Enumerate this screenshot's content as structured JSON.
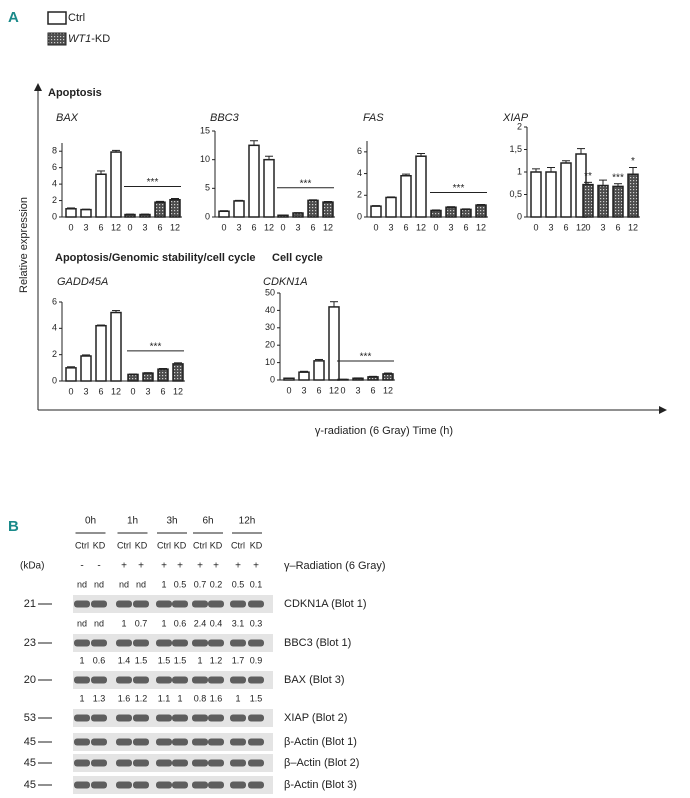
{
  "panel_a": {
    "label": "A",
    "legend": [
      "Ctrl",
      [
        "WT1",
        "-KD"
      ]
    ],
    "y_label": "Relative expression",
    "x_label": "γ-radiation (6 Gray) Time (h)",
    "sections": [
      "Apoptosis",
      "Apoptosis/Genomic stability/cell cycle",
      "Cell cycle"
    ]
  },
  "chart_data": [
    {
      "type": "bar",
      "title": "BAX",
      "categories": [
        "0",
        "3",
        "6",
        "12",
        "0",
        "3",
        "6",
        "12"
      ],
      "series": [
        {
          "color": "#ffffff",
          "values": [
            1.0,
            0.9,
            5.2,
            7.9,
            null,
            null,
            null,
            null
          ],
          "errors": [
            0.1,
            0.05,
            0.4,
            0.2,
            null,
            null,
            null,
            null
          ]
        },
        {
          "color": "#4d4d4d",
          "values": [
            null,
            null,
            null,
            null,
            0.3,
            0.3,
            1.8,
            2.1
          ],
          "errors": [
            null,
            null,
            null,
            null,
            0.05,
            0.05,
            0.1,
            0.15
          ]
        }
      ],
      "ylim": [
        0,
        9
      ],
      "yticks": [
        0,
        2,
        4,
        6,
        8
      ],
      "annotation": "***"
    },
    {
      "type": "bar",
      "title": "BBC3",
      "categories": [
        "0",
        "3",
        "6",
        "12",
        "0",
        "3",
        "6",
        "12"
      ],
      "series": [
        {
          "color": "#ffffff",
          "values": [
            1.0,
            2.8,
            12.5,
            10.0,
            null,
            null,
            null,
            null
          ],
          "errors": [
            0.1,
            0.1,
            0.8,
            0.6,
            null,
            null,
            null,
            null
          ]
        },
        {
          "color": "#4d4d4d",
          "values": [
            null,
            null,
            null,
            null,
            0.3,
            0.7,
            2.9,
            2.6
          ],
          "errors": [
            null,
            null,
            null,
            null,
            0.05,
            0.05,
            0.1,
            0.1
          ]
        }
      ],
      "ylim": [
        0,
        15
      ],
      "yticks": [
        0,
        5,
        10,
        15
      ],
      "annotation": "***"
    },
    {
      "type": "bar",
      "title": "FAS",
      "categories": [
        "0",
        "3",
        "6",
        "12",
        "0",
        "3",
        "6",
        "12"
      ],
      "series": [
        {
          "color": "#ffffff",
          "values": [
            1.0,
            1.8,
            3.8,
            5.6,
            null,
            null,
            null,
            null
          ],
          "errors": [
            0.05,
            0.05,
            0.15,
            0.25,
            null,
            null,
            null,
            null
          ]
        },
        {
          "color": "#4d4d4d",
          "values": [
            null,
            null,
            null,
            null,
            0.6,
            0.9,
            0.7,
            1.1
          ],
          "errors": [
            null,
            null,
            null,
            null,
            0.05,
            0.05,
            0.05,
            0.05
          ]
        }
      ],
      "ylim": [
        0,
        7
      ],
      "yticks": [
        0,
        2,
        4,
        6
      ],
      "annotation": "***"
    },
    {
      "type": "bar",
      "title": "XIAP",
      "categories": [
        "0",
        "3",
        "6",
        "12",
        "0",
        "3",
        "6",
        "12"
      ],
      "series": [
        {
          "color": "#ffffff",
          "values": [
            1.0,
            1.0,
            1.2,
            1.4,
            null,
            null,
            null,
            null
          ],
          "errors": [
            0.07,
            0.1,
            0.05,
            0.12,
            null,
            null,
            null,
            null
          ]
        },
        {
          "color": "#4d4d4d",
          "values": [
            null,
            null,
            null,
            null,
            0.72,
            0.7,
            0.68,
            0.95
          ],
          "errors": [
            null,
            null,
            null,
            null,
            0.05,
            0.12,
            0.06,
            0.15
          ],
          "stars": [
            null,
            null,
            null,
            null,
            "**",
            null,
            "***",
            "*"
          ]
        }
      ],
      "ylim": [
        0,
        2
      ],
      "yticks": [
        0,
        {
          "value": 0.5,
          "label": "0,5"
        },
        1,
        {
          "value": 1.5,
          "label": "1,5"
        },
        2
      ]
    },
    {
      "type": "bar",
      "title": "GADD45A",
      "categories": [
        "0",
        "3",
        "6",
        "12",
        "0",
        "3",
        "6",
        "12"
      ],
      "series": [
        {
          "color": "#ffffff",
          "values": [
            1.0,
            1.9,
            4.2,
            5.2,
            null,
            null,
            null,
            null
          ],
          "errors": [
            0.08,
            0.08,
            0.05,
            0.15,
            null,
            null,
            null,
            null
          ]
        },
        {
          "color": "#4d4d4d",
          "values": [
            null,
            null,
            null,
            null,
            0.5,
            0.6,
            0.9,
            1.3
          ],
          "errors": [
            null,
            null,
            null,
            null,
            0.03,
            0.03,
            0.05,
            0.08
          ]
        }
      ],
      "ylim": [
        0,
        6
      ],
      "yticks": [
        0,
        2,
        4,
        6
      ],
      "annotation": "***"
    },
    {
      "type": "bar",
      "title": "CDKN1A",
      "categories": [
        "0",
        "3",
        "6",
        "12",
        "0",
        "3",
        "6",
        "12"
      ],
      "series": [
        {
          "color": "#ffffff",
          "values": [
            1.0,
            4.5,
            11,
            42,
            null,
            null,
            null,
            null
          ],
          "errors": [
            0.1,
            0.5,
            0.8,
            3,
            null,
            null,
            null,
            null
          ]
        },
        {
          "color": "#4d4d4d",
          "values": [
            null,
            null,
            null,
            null,
            0.3,
            1.0,
            1.8,
            3.5
          ],
          "errors": [
            null,
            null,
            null,
            null,
            0.1,
            0.2,
            0.3,
            0.5
          ]
        }
      ],
      "ylim": [
        0,
        50
      ],
      "yticks": [
        0,
        10,
        20,
        30,
        40,
        50
      ],
      "annotation": "***"
    }
  ],
  "panel_b": {
    "label": "B",
    "times": [
      "0h",
      "1h",
      "3h",
      "6h",
      "12h"
    ],
    "lanes": [
      "Ctrl",
      "KD",
      "Ctrl",
      "KD",
      "Ctrl",
      "KD",
      "Ctrl",
      "KD",
      "Ctrl",
      "KD"
    ],
    "kda_label": "(kDa)",
    "radiation": [
      "-",
      "-",
      "+",
      "+",
      "+",
      "+",
      "+",
      "+",
      "+",
      "+"
    ],
    "radiation_label": "γ–Radiation (6 Gray)",
    "rows": [
      {
        "kda": "21",
        "label": "CDKN1A (Blot 1)",
        "quant": [
          "nd",
          "nd",
          "nd",
          "nd",
          "1",
          "0.5",
          "0.7",
          "0.2",
          "0.5",
          "0.1"
        ]
      },
      {
        "kda": "23",
        "label": "BBC3 (Blot 1)",
        "quant": [
          "nd",
          "nd",
          "1",
          "0.7",
          "1",
          "0.6",
          "2.4",
          "0.4",
          "3.1",
          "0.3"
        ]
      },
      {
        "kda": "20",
        "label": "BAX (Blot 3)",
        "quant": [
          "1",
          "0.6",
          "1.4",
          "1.5",
          "1.5",
          "1.5",
          "1",
          "1.2",
          "1.7",
          "0.9"
        ]
      },
      {
        "kda": "53",
        "label": "XIAP (Blot 2)",
        "quant": [
          "1",
          "1.3",
          "1.6",
          "1.2",
          "1.1",
          "1",
          "0.8",
          "1.6",
          "1",
          "1.5"
        ]
      },
      {
        "kda": "45",
        "label": "β-Actin (Blot 1)"
      },
      {
        "kda": "45",
        "label": "β–Actin (Blot 2)"
      },
      {
        "kda": "45",
        "label": "β-Actin (Blot 3)"
      }
    ]
  }
}
